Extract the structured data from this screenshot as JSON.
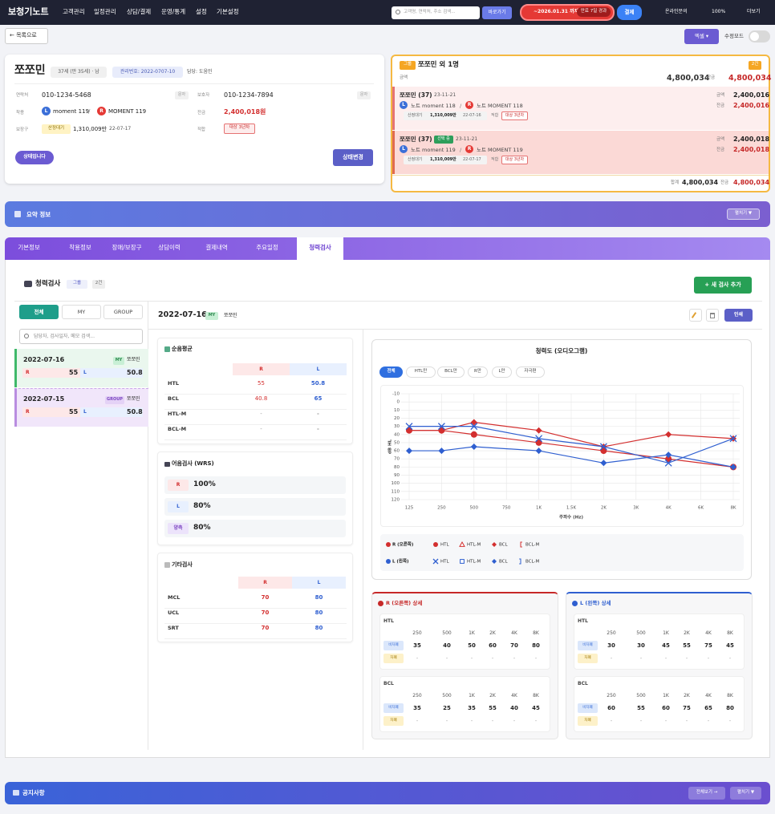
{
  "header": {
    "logo": "보청기노트",
    "nav": [
      "고객관리",
      "일정관리",
      "상담/결제",
      "운영/통계",
      "설정",
      "기본설정"
    ],
    "search_placeholder": "고객명, 연락처, 주소 검색...",
    "go_button": "바로가기",
    "expiry": "~2026.01.31 까지",
    "expiry_badge": "만료 7일 경과",
    "pay": "결제",
    "links": [
      "온라인문의",
      "100%",
      "더보기"
    ]
  },
  "toolbar": {
    "back": "← 목록으로",
    "excel": "엑셀 ▾",
    "edit_mode": "수정모드"
  },
  "patient": {
    "name": "쪼쪼민",
    "age": "37세 (만 35세) · 남",
    "mgmt_no": "관리번호: 2022-0707-10",
    "manager": "담당: 도움민",
    "contact_label": "연락처",
    "contact": "010-1234-5468",
    "sms": "문자",
    "guardian_label": "보호자",
    "guardian": "010-1234-7894",
    "wear_label": "착용",
    "left": "L",
    "left_device": "moment 119",
    "sep": "/",
    "right": "R",
    "right_device": "MOMENT 119",
    "balance_label": "잔금",
    "balance": "2,400,018원",
    "subsidy_label": "보장구",
    "subsidy_status": "산정대기",
    "subsidy_amount": "1,310,009만",
    "subsidy_date": "22-07-17",
    "fit_label": "적합",
    "fit": "대상 3년차",
    "status_button": "상태입니다",
    "change_button": "상태변경"
  },
  "group": {
    "badge": "그룹",
    "title": "쪼쪼민 외 1명",
    "count": "2건",
    "amount_label": "금액",
    "amount": "4,800,034",
    "balance_label": "잔금",
    "balance": "4,800,034",
    "members": [
      {
        "name": "쪼쪼민 (37)",
        "date": "23-11-21",
        "amount": "2,400,016",
        "balance": "2,400,016",
        "left_device": "노트 moment 118",
        "right_device": "노트 MOMENT 118",
        "subsidy_status": "산정대기",
        "subsidy_amount": "1,310,009만",
        "subsidy_date": "22-07-16",
        "fit": "대상 3년차"
      },
      {
        "name": "쪼쪼민 (37)",
        "selected": "선택 중",
        "date": "23-11-21",
        "amount": "2,400,018",
        "balance": "2,400,018",
        "left_device": "노트 moment 119",
        "right_device": "노트 MOMENT 119",
        "subsidy_status": "산정대기",
        "subsidy_amount": "1,310,009만",
        "subsidy_date": "22-07-17",
        "fit": "대상 3년차"
      }
    ],
    "total_label": "합계",
    "total": "4,800,034",
    "total_balance_label": "잔금",
    "total_balance": "4,800,034"
  },
  "summary": {
    "title": "요약 정보",
    "toggle": "펼치기 ▼"
  },
  "tabs": {
    "items": [
      "기본정보",
      "착용정보",
      "장애/보장구",
      "상담이력",
      "결제내역",
      "주요일정",
      "청력검사"
    ],
    "active": 6
  },
  "hearing": {
    "title": "청력검사",
    "scope": "그룹",
    "count": "2건",
    "add": "+ 새 검사 추가",
    "filters": [
      "전체",
      "MY",
      "GROUP"
    ],
    "search_placeholder": "담당자, 검사일자, 메모 검색...",
    "records": [
      {
        "date": "2022-07-16",
        "scope": "MY",
        "name": "쪼쪼민",
        "r": 55,
        "l": 50.8
      },
      {
        "date": "2022-07-15",
        "scope": "GROUP",
        "name": "쪼쪼민",
        "r": 55,
        "l": 50.8
      }
    ],
    "detail": {
      "date": "2022-07-16",
      "scope": "MY",
      "name": "쪼쪼민",
      "print": "인쇄"
    },
    "pta": {
      "title": "순음평균",
      "columns": [
        "R",
        "L"
      ],
      "rows": [
        [
          "HTL",
          "55",
          "50.8"
        ],
        [
          "BCL",
          "40.8",
          "65"
        ],
        [
          "HTL-M",
          "-",
          "-"
        ],
        [
          "BCL-M",
          "-",
          "-"
        ]
      ]
    },
    "wrs": {
      "title": "어음검사 (WRS)",
      "rows": [
        [
          "R",
          "100%"
        ],
        [
          "L",
          "80%"
        ],
        [
          "양측",
          "80%"
        ]
      ]
    },
    "other": {
      "title": "기타검사",
      "columns": [
        "R",
        "L"
      ],
      "rows": [
        [
          "MCL",
          "70",
          "80"
        ],
        [
          "UCL",
          "70",
          "80"
        ],
        [
          "SRT",
          "70",
          "80"
        ]
      ]
    },
    "audiogram": {
      "type": "line",
      "title": "청력도 (오디오그램)",
      "filters": [
        "전체",
        "HTL만",
        "BCL만",
        "R만",
        "L만",
        "자극편"
      ],
      "categories": [
        "125",
        "250",
        "500",
        "750",
        "1K",
        "1.5K",
        "2K",
        "3K",
        "4K",
        "6K",
        "8K"
      ],
      "ylim": [
        120,
        -10
      ],
      "yticks": [
        -10,
        0,
        10,
        20,
        30,
        40,
        50,
        60,
        70,
        80,
        90,
        100,
        110,
        120
      ],
      "ylabel": "dB HL",
      "xlabel": "주파수 (Hz)",
      "grid": true,
      "sides": [
        {
          "name": "R (오른쪽)",
          "color": "#d32f2f",
          "series": [
            {
              "name": "HTL",
              "marker": "circle",
              "x": [
                "125",
                "250",
                "500",
                "1K",
                "2K",
                "4K",
                "8K"
              ],
              "values": [
                35,
                35,
                40,
                50,
                60,
                70,
                80
              ]
            },
            {
              "name": "HTL-M",
              "marker": "triangle",
              "x": [],
              "values": []
            },
            {
              "name": "BCL",
              "marker": "diamond",
              "x": [
                "125",
                "250",
                "500",
                "1K",
                "2K",
                "4K",
                "8K"
              ],
              "values": [
                35,
                35,
                25,
                35,
                55,
                40,
                45
              ]
            },
            {
              "name": "BCL-M",
              "marker": "bracket-left",
              "x": [],
              "values": []
            }
          ]
        },
        {
          "name": "L (왼쪽)",
          "color": "#2f5fd0",
          "series": [
            {
              "name": "HTL",
              "marker": "x",
              "x": [
                "125",
                "250",
                "500",
                "1K",
                "2K",
                "4K",
                "8K"
              ],
              "values": [
                30,
                30,
                30,
                45,
                55,
                75,
                45
              ]
            },
            {
              "name": "HTL-M",
              "marker": "square",
              "x": [],
              "values": []
            },
            {
              "name": "BCL",
              "marker": "diamond",
              "x": [
                "125",
                "250",
                "500",
                "1K",
                "2K",
                "4K",
                "8K"
              ],
              "values": [
                60,
                60,
                55,
                60,
                75,
                65,
                80
              ]
            },
            {
              "name": "BCL-M",
              "marker": "bracket-right",
              "x": [],
              "values": []
            }
          ]
        }
      ]
    },
    "details": [
      {
        "title": "R (오른쪽) 상세",
        "color": "#c62828",
        "blocks": [
          {
            "name": "HTL",
            "columns": [
              "250",
              "500",
              "1K",
              "2K",
              "4K",
              "8K"
            ],
            "rows": [
              [
                "비차폐",
                "35",
                "40",
                "50",
                "60",
                "70",
                "80"
              ],
              [
                "차폐",
                "-",
                "-",
                "-",
                "-",
                "-",
                "-"
              ]
            ]
          },
          {
            "name": "BCL",
            "columns": [
              "250",
              "500",
              "1K",
              "2K",
              "4K",
              "8K"
            ],
            "rows": [
              [
                "비차폐",
                "35",
                "25",
                "35",
                "55",
                "40",
                "45"
              ],
              [
                "차폐",
                "-",
                "-",
                "-",
                "-",
                "-",
                "-"
              ]
            ]
          }
        ]
      },
      {
        "title": "L (왼쪽) 상세",
        "color": "#2f5fd0",
        "blocks": [
          {
            "name": "HTL",
            "columns": [
              "250",
              "500",
              "1K",
              "2K",
              "4K",
              "8K"
            ],
            "rows": [
              [
                "비차폐",
                "30",
                "30",
                "45",
                "55",
                "75",
                "45"
              ],
              [
                "차폐",
                "-",
                "-",
                "-",
                "-",
                "-",
                "-"
              ]
            ]
          },
          {
            "name": "BCL",
            "columns": [
              "250",
              "500",
              "1K",
              "2K",
              "4K",
              "8K"
            ],
            "rows": [
              [
                "비차폐",
                "60",
                "55",
                "60",
                "75",
                "65",
                "80"
              ],
              [
                "차폐",
                "-",
                "-",
                "-",
                "-",
                "-",
                "-"
              ]
            ]
          }
        ]
      }
    ]
  },
  "notice": {
    "title": "공지사항",
    "all": "전체보기 →",
    "toggle": "펼치기 ▼"
  }
}
